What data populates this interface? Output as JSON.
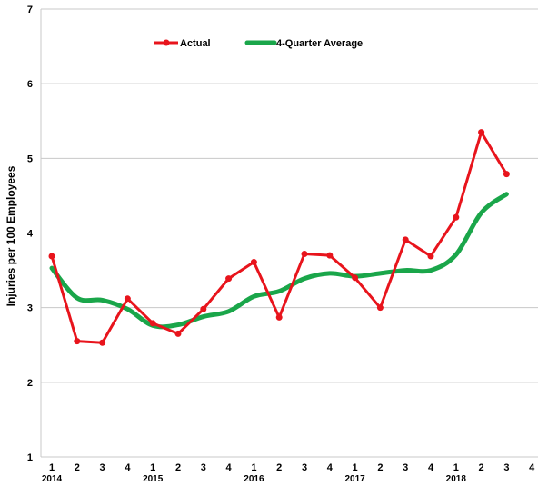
{
  "chart_data": {
    "type": "line",
    "title": "",
    "xlabel": "",
    "ylabel": "Injuries per 100 Employees",
    "ylim": [
      1,
      7
    ],
    "yticks": [
      "1",
      "2",
      "3",
      "4",
      "5",
      "6",
      "7"
    ],
    "quarter_labels": [
      "1",
      "2",
      "3",
      "4",
      "1",
      "2",
      "3",
      "4",
      "1",
      "2",
      "3",
      "4",
      "1",
      "2",
      "3",
      "4",
      "1",
      "2",
      "3",
      "4"
    ],
    "year_labels": [
      {
        "label": "2014",
        "index": 0
      },
      {
        "label": "2015",
        "index": 4
      },
      {
        "label": "2016",
        "index": 8
      },
      {
        "label": "2017",
        "index": 12
      },
      {
        "label": "2018",
        "index": 16
      }
    ],
    "grid": true,
    "legend": "top",
    "series": [
      {
        "name": "Actual",
        "color": "#e8141c",
        "markers": true,
        "values": [
          3.69,
          2.55,
          2.53,
          3.12,
          2.79,
          2.65,
          2.98,
          3.39,
          3.61,
          2.87,
          3.72,
          3.7,
          3.4,
          3.0,
          3.91,
          3.69,
          4.21,
          5.35,
          4.79
        ]
      },
      {
        "name": "4-Quarter Average",
        "color": "#1aa64a",
        "markers": false,
        "values": [
          3.53,
          3.13,
          3.1,
          2.98,
          2.76,
          2.77,
          2.88,
          2.95,
          3.15,
          3.22,
          3.39,
          3.46,
          3.42,
          3.46,
          3.5,
          3.5,
          3.71,
          4.27,
          4.52
        ]
      }
    ]
  }
}
